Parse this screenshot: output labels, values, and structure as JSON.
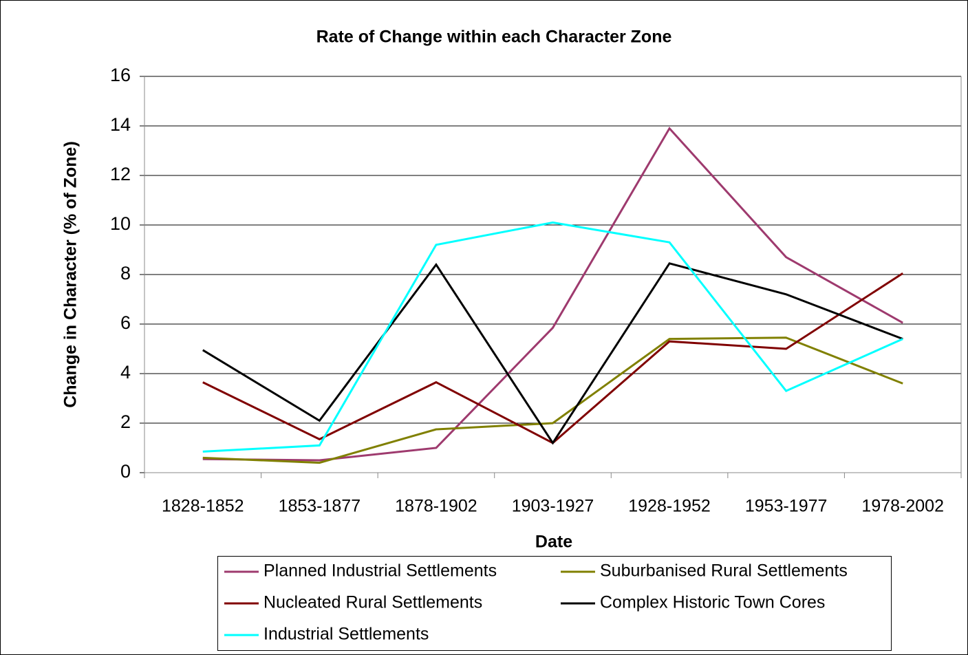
{
  "chart_data": {
    "type": "line",
    "title": "Rate of Change within each Character Zone",
    "x_label": "Date",
    "y_label": "Change in Character (% of Zone)",
    "categories": [
      "1828-1852",
      "1853-1877",
      "1878-1902",
      "1903-1927",
      "1928-1952",
      "1953-1977",
      "1978-2002"
    ],
    "series": [
      {
        "name": "Planned Industrial Settlements",
        "color": "#9e3a6e",
        "values": [
          0.55,
          0.5,
          1.0,
          5.85,
          13.9,
          8.7,
          6.05
        ]
      },
      {
        "name": "Suburbanised Rural Settlements",
        "color": "#808000",
        "values": [
          0.6,
          0.4,
          1.75,
          2.0,
          5.4,
          5.45,
          3.6
        ]
      },
      {
        "name": "Nucleated Rural Settlements",
        "color": "#800000",
        "values": [
          3.65,
          1.35,
          3.65,
          1.2,
          5.3,
          5.0,
          8.05
        ]
      },
      {
        "name": "Complex Historic Town Cores",
        "color": "#000000",
        "values": [
          4.95,
          2.1,
          8.4,
          1.2,
          8.45,
          7.2,
          5.4
        ]
      },
      {
        "name": "Industrial Settlements",
        "color": "#00ffff",
        "values": [
          0.85,
          1.1,
          9.2,
          10.1,
          9.3,
          3.3,
          5.4
        ]
      }
    ],
    "ylim": [
      0,
      16
    ],
    "yticks": [
      0,
      2,
      4,
      6,
      8,
      10,
      12,
      14,
      16
    ],
    "grid": true,
    "legend": "bottom"
  }
}
